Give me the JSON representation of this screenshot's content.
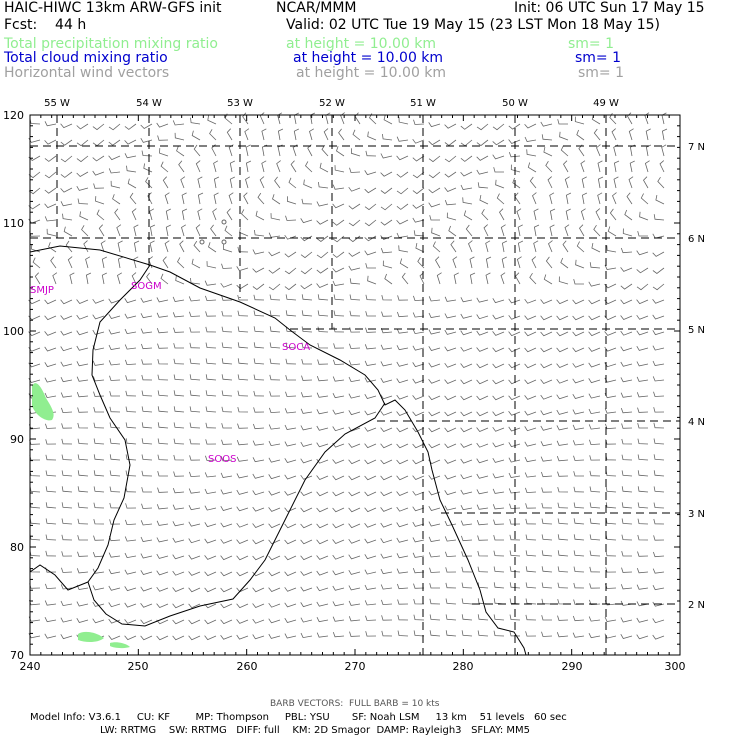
{
  "header": {
    "title_left": "HAIC-HIWC 13km ARW-GFS init",
    "org": "NCAR/MMM",
    "init": "Init: 06 UTC Sun 17 May 15",
    "fcst": "Fcst:    44 h",
    "valid": "Valid: 02 UTC Tue 19 May 15 (23 LST Mon 18 May 15)"
  },
  "fields": [
    {
      "name": "Total precipitation mixing ratio",
      "height": "at height = 10.00 km",
      "sm": "sm= 1",
      "color": "#90ee90"
    },
    {
      "name": "Total cloud mixing ratio",
      "height": "at height = 10.00 km",
      "sm": "sm= 1",
      "color": "#0000cd"
    },
    {
      "name": "Horizontal wind vectors",
      "height": "at height = 10.00 km",
      "sm": "sm= 1",
      "color": "#a0a0a0"
    }
  ],
  "map": {
    "lon_labels": [
      "55 W",
      "54 W",
      "53 W",
      "52 W",
      "51 W",
      "50 W",
      "49 W"
    ],
    "lat_labels": [
      "7 N",
      "6 N",
      "5 N",
      "4 N",
      "3 N",
      "2 N"
    ],
    "x_ticks": [
      "240",
      "250",
      "260",
      "270",
      "280",
      "290",
      "300"
    ],
    "y_ticks": [
      "120",
      "110",
      "100",
      "90",
      "80",
      "70"
    ],
    "stations": [
      "SMJP",
      "SOGM",
      "SOCA",
      "SOOS"
    ],
    "station_color": "#cc00cc",
    "coast_color": "#000000",
    "grid_color": "#000000",
    "barb_color": "#666666",
    "precip_color": "#90ee90"
  },
  "footer": {
    "barb_note": "BARB VECTORS:  FULL BARB = 10 kts",
    "model_info_1": "Model Info: V3.6.1     CU: KF        MP: Thompson     PBL: YSU       SF: Noah LSM     13 km    51 levels   60 sec",
    "model_info_2": "LW: RRTMG    SW: RRTMG   DIFF: full    KM: 2D Smagor  DAMP: Rayleigh3   SFLAY: MM5"
  }
}
